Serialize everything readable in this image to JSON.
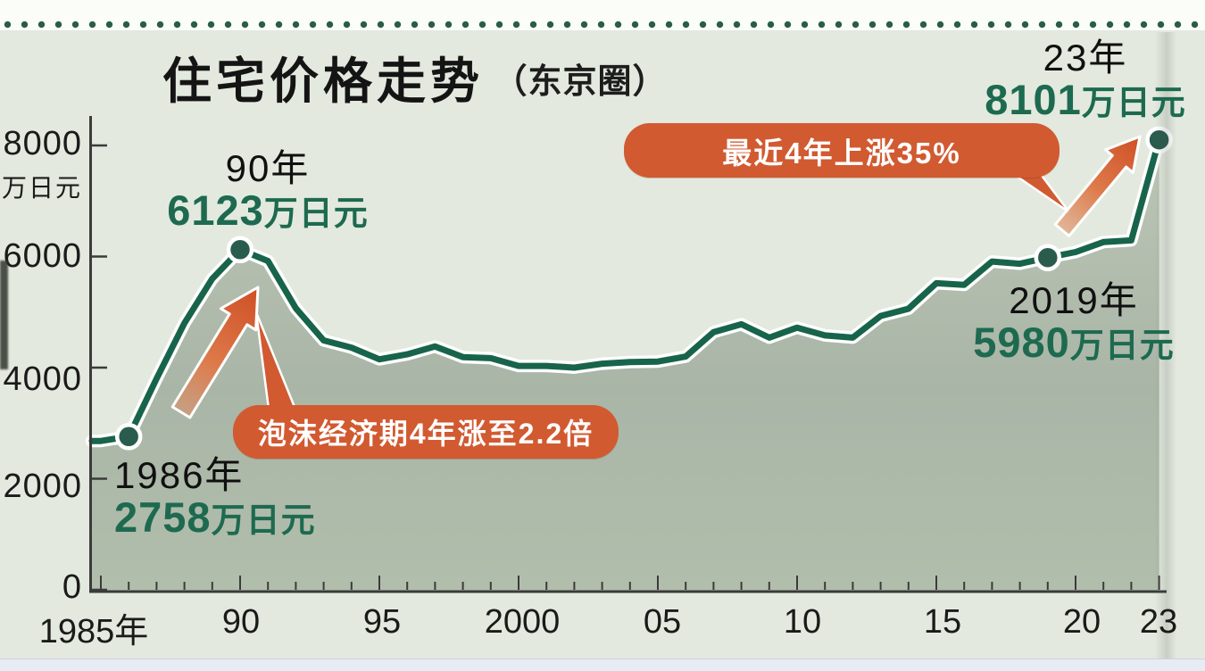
{
  "page": {
    "title_main": "住宅价格走势",
    "title_sub": "（东京圈）"
  },
  "y_axis": {
    "unit": "万日元",
    "labels": [
      "8000",
      "6000",
      "4000",
      "2000",
      "0"
    ]
  },
  "x_axis": {
    "labels": [
      "1985年",
      "90",
      "95",
      "2000",
      "05",
      "10",
      "15",
      "20",
      "23"
    ]
  },
  "points": {
    "p1986": {
      "year_label": "1986年",
      "value": "2758",
      "unit": "万日元"
    },
    "p1990": {
      "year_label": "90年",
      "value": "6123",
      "unit": "万日元"
    },
    "p2019": {
      "year_label": "2019年",
      "value": "5980",
      "unit": "万日元"
    },
    "p2023": {
      "year_label": "23年",
      "value": "8101",
      "unit": "万日元"
    }
  },
  "callouts": {
    "bubble": "泡沫经济期4年涨至2.2倍",
    "recent": "最近4年上涨35%"
  },
  "colors": {
    "background": "#e3e9de",
    "line_green": "#17644b",
    "marker_green": "#2a5c4e",
    "value_text_green": "#1d6a50",
    "accent_orange": "#d15a31",
    "area_fill": "#adb9aa",
    "dotted_rule_green": "#2a5c49"
  },
  "chart_data": {
    "type": "area",
    "title": "住宅价格走势（东京圈）",
    "series_name": "住宅价格",
    "ylabel": "万日元",
    "ylim": [
      0,
      8000
    ],
    "y_ticks": [
      0,
      2000,
      4000,
      6000,
      8000
    ],
    "x_tick_years": [
      1985,
      1990,
      1995,
      2000,
      2005,
      2010,
      2015,
      2020,
      2023
    ],
    "x": [
      1985,
      1986,
      1987,
      1988,
      1989,
      1990,
      1991,
      1992,
      1993,
      1994,
      1995,
      1996,
      1997,
      1998,
      1999,
      2000,
      2001,
      2002,
      2003,
      2004,
      2005,
      2006,
      2007,
      2008,
      2009,
      2010,
      2011,
      2012,
      2013,
      2014,
      2015,
      2016,
      2017,
      2018,
      2019,
      2020,
      2021,
      2022,
      2023
    ],
    "values": [
      2680,
      2758,
      3800,
      4800,
      5600,
      6123,
      5920,
      5070,
      4490,
      4360,
      4150,
      4240,
      4380,
      4190,
      4170,
      4030,
      4030,
      4000,
      4070,
      4100,
      4110,
      4200,
      4640,
      4780,
      4540,
      4720,
      4580,
      4540,
      4930,
      5060,
      5520,
      5490,
      5910,
      5870,
      5980,
      6080,
      6260,
      6290,
      8101
    ],
    "highlighted_points": [
      {
        "year": 1986,
        "value": 2758
      },
      {
        "year": 1990,
        "value": 6123
      },
      {
        "year": 2019,
        "value": 5980
      },
      {
        "year": 2023,
        "value": 8101
      }
    ],
    "annotations": [
      {
        "text": "泡沫经济期4年涨至2.2倍",
        "target_years": "1986-1990"
      },
      {
        "text": "最近4年上涨35%",
        "target_years": "2019-2023"
      }
    ],
    "grid": false,
    "legend": false
  }
}
